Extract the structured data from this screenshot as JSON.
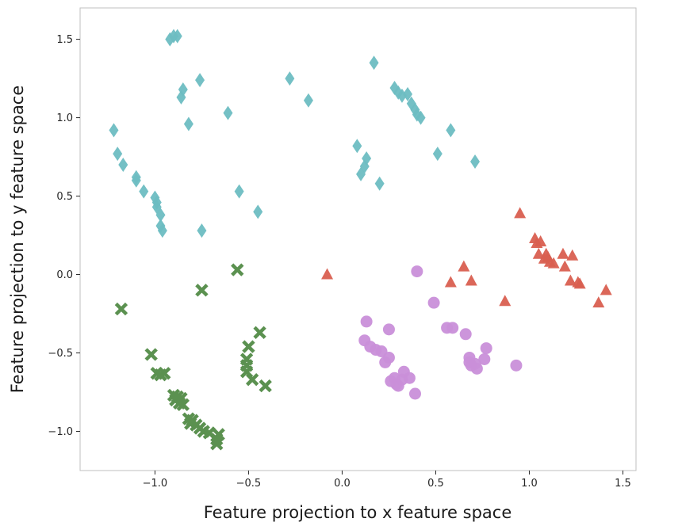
{
  "chart_data": {
    "type": "scatter",
    "title": "",
    "xlabel": "Feature projection to x feature space",
    "ylabel": "Feature projection to y feature space",
    "xlim": [
      -1.4,
      1.57
    ],
    "ylim": [
      -1.25,
      1.7
    ],
    "xticks": [
      -1.0,
      -0.5,
      0.0,
      0.5,
      1.0,
      1.5
    ],
    "yticks": [
      -1.0,
      -0.5,
      0.0,
      0.5,
      1.0,
      1.5
    ],
    "xtick_labels": [
      "−1.0",
      "−0.5",
      "0.0",
      "0.5",
      "1.0",
      "1.5"
    ],
    "ytick_labels": [
      "−1.0",
      "−0.5",
      "0.0",
      "0.5",
      "1.0",
      "1.5"
    ],
    "grid": false,
    "series": [
      {
        "marker": "diamond",
        "color": "#6dbdc2",
        "points": [
          [
            -0.92,
            1.5
          ],
          [
            -0.9,
            1.52
          ],
          [
            -0.88,
            1.52
          ],
          [
            -0.86,
            1.13
          ],
          [
            -0.85,
            1.18
          ],
          [
            -0.76,
            1.24
          ],
          [
            -0.82,
            0.96
          ],
          [
            -0.61,
            1.03
          ],
          [
            -1.22,
            0.92
          ],
          [
            -1.2,
            0.77
          ],
          [
            -1.17,
            0.7
          ],
          [
            -1.1,
            0.62
          ],
          [
            -1.1,
            0.6
          ],
          [
            -1.06,
            0.53
          ],
          [
            -1.0,
            0.49
          ],
          [
            -0.99,
            0.46
          ],
          [
            -0.99,
            0.43
          ],
          [
            -0.97,
            0.38
          ],
          [
            -0.97,
            0.31
          ],
          [
            -0.96,
            0.28
          ],
          [
            -0.75,
            0.28
          ],
          [
            -0.55,
            0.53
          ],
          [
            -0.45,
            0.4
          ],
          [
            -0.28,
            1.25
          ],
          [
            -0.18,
            1.11
          ],
          [
            0.08,
            0.82
          ],
          [
            0.1,
            0.64
          ],
          [
            0.12,
            0.69
          ],
          [
            0.13,
            0.74
          ],
          [
            0.2,
            0.58
          ],
          [
            0.17,
            1.35
          ],
          [
            0.28,
            1.19
          ],
          [
            0.3,
            1.16
          ],
          [
            0.32,
            1.14
          ],
          [
            0.35,
            1.15
          ],
          [
            0.37,
            1.09
          ],
          [
            0.39,
            1.05
          ],
          [
            0.4,
            1.02
          ],
          [
            0.42,
            1.0
          ],
          [
            0.51,
            0.77
          ],
          [
            0.58,
            0.92
          ],
          [
            0.71,
            0.72
          ]
        ]
      },
      {
        "marker": "x",
        "color": "#5b9150",
        "points": [
          [
            -1.18,
            -0.22
          ],
          [
            -1.02,
            -0.51
          ],
          [
            -0.99,
            -0.63
          ],
          [
            -0.97,
            -0.64
          ],
          [
            -0.95,
            -0.63
          ],
          [
            -0.9,
            -0.77
          ],
          [
            -0.89,
            -0.8
          ],
          [
            -0.88,
            -0.78
          ],
          [
            -0.87,
            -0.82
          ],
          [
            -0.86,
            -0.79
          ],
          [
            -0.85,
            -0.83
          ],
          [
            -0.82,
            -0.92
          ],
          [
            -0.81,
            -0.95
          ],
          [
            -0.8,
            -0.93
          ],
          [
            -0.78,
            -0.96
          ],
          [
            -0.76,
            -0.98
          ],
          [
            -0.74,
            -1.0
          ],
          [
            -0.71,
            -1.01
          ],
          [
            -0.67,
            -1.05
          ],
          [
            -0.67,
            -1.08
          ],
          [
            -0.66,
            -1.02
          ],
          [
            -0.75,
            -0.1
          ],
          [
            -0.56,
            0.03
          ],
          [
            -0.5,
            -0.46
          ],
          [
            -0.51,
            -0.54
          ],
          [
            -0.51,
            -0.58
          ],
          [
            -0.51,
            -0.62
          ],
          [
            -0.48,
            -0.67
          ],
          [
            -0.44,
            -0.37
          ],
          [
            -0.41,
            -0.71
          ]
        ]
      },
      {
        "marker": "circle",
        "color": "#c98fd9",
        "points": [
          [
            0.13,
            -0.3
          ],
          [
            0.12,
            -0.42
          ],
          [
            0.15,
            -0.46
          ],
          [
            0.18,
            -0.48
          ],
          [
            0.21,
            -0.49
          ],
          [
            0.23,
            -0.56
          ],
          [
            0.25,
            -0.53
          ],
          [
            0.25,
            -0.35
          ],
          [
            0.26,
            -0.68
          ],
          [
            0.28,
            -0.66
          ],
          [
            0.29,
            -0.7
          ],
          [
            0.3,
            -0.71
          ],
          [
            0.32,
            -0.67
          ],
          [
            0.33,
            -0.62
          ],
          [
            0.36,
            -0.66
          ],
          [
            0.39,
            -0.76
          ],
          [
            0.4,
            0.02
          ],
          [
            0.49,
            -0.18
          ],
          [
            0.56,
            -0.34
          ],
          [
            0.59,
            -0.34
          ],
          [
            0.66,
            -0.38
          ],
          [
            0.68,
            -0.53
          ],
          [
            0.68,
            -0.56
          ],
          [
            0.69,
            -0.58
          ],
          [
            0.71,
            -0.57
          ],
          [
            0.72,
            -0.6
          ],
          [
            0.76,
            -0.54
          ],
          [
            0.77,
            -0.47
          ],
          [
            0.93,
            -0.58
          ]
        ]
      },
      {
        "marker": "triangle",
        "color": "#d95f50",
        "points": [
          [
            -0.08,
            0.0
          ],
          [
            0.58,
            -0.05
          ],
          [
            0.65,
            0.05
          ],
          [
            0.69,
            -0.04
          ],
          [
            0.87,
            -0.17
          ],
          [
            0.95,
            0.39
          ],
          [
            1.03,
            0.23
          ],
          [
            1.04,
            0.2
          ],
          [
            1.05,
            0.13
          ],
          [
            1.06,
            0.21
          ],
          [
            1.08,
            0.1
          ],
          [
            1.09,
            0.13
          ],
          [
            1.1,
            0.11
          ],
          [
            1.11,
            0.08
          ],
          [
            1.13,
            0.07
          ],
          [
            1.18,
            0.13
          ],
          [
            1.19,
            0.05
          ],
          [
            1.22,
            -0.04
          ],
          [
            1.23,
            0.12
          ],
          [
            1.26,
            -0.05
          ],
          [
            1.27,
            -0.06
          ],
          [
            1.37,
            -0.18
          ],
          [
            1.41,
            -0.1
          ]
        ]
      }
    ]
  }
}
